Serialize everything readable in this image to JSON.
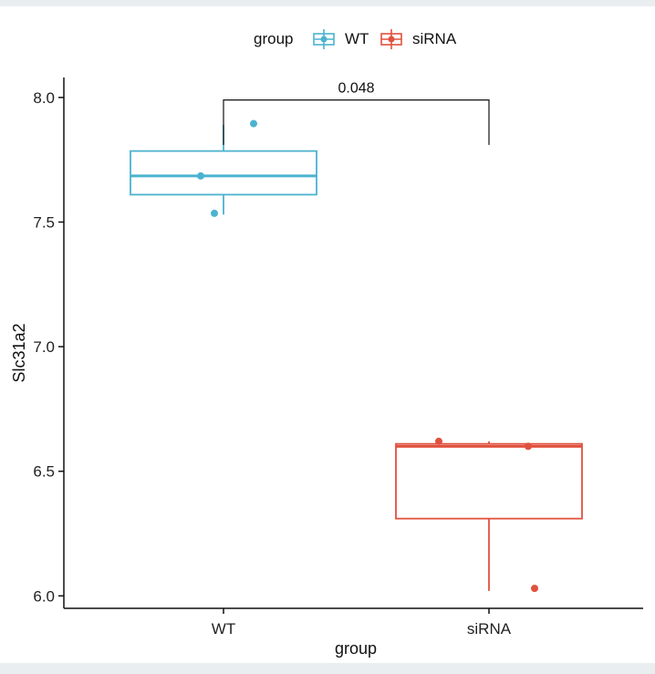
{
  "chart_data": {
    "type": "box",
    "xlabel": "group",
    "ylabel": "Slc31a2",
    "ylim": [
      5.95,
      8.08
    ],
    "yticks": [
      6.0,
      6.5,
      7.0,
      7.5,
      8.0
    ],
    "ytick_labels": [
      "6.0",
      "6.5",
      "7.0",
      "7.5",
      "8.0"
    ],
    "categories": [
      "WT",
      "siRNA"
    ],
    "legend": {
      "title": "group",
      "position": "top",
      "entries": [
        "WT",
        "siRNA"
      ]
    },
    "series": [
      {
        "name": "WT",
        "color": "#4bb3cf",
        "whisker_low": 7.53,
        "q1": 7.61,
        "median": 7.685,
        "q3": 7.785,
        "whisker_high": 7.89,
        "points": [
          7.895,
          7.685,
          7.535
        ]
      },
      {
        "name": "siRNA",
        "color": "#e0523f",
        "whisker_low": 6.02,
        "q1": 6.31,
        "median": 6.6,
        "q3": 6.61,
        "whisker_high": 6.62,
        "points": [
          6.62,
          6.6,
          6.03
        ]
      }
    ],
    "comparison": {
      "label": "0.048",
      "y": 7.99
    },
    "grid": false
  }
}
